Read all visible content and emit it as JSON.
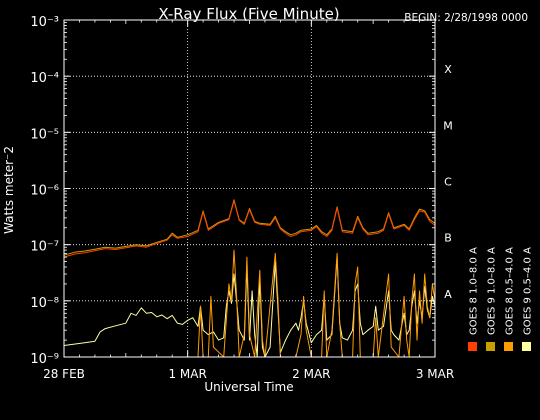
{
  "header": {
    "title": "X-Ray Flux (Five Minute)",
    "begin": "BEGIN: 2/28/1998 0000"
  },
  "chart_data": {
    "type": "line",
    "title": "X-Ray Flux (Five Minute)",
    "xlabel": "Universal Time",
    "ylabel": "Watts meter⁻2",
    "y_scale": "log",
    "ylim": [
      1e-09,
      0.001
    ],
    "y_ticks": [
      {
        "value": 1e-09,
        "label": "10⁻⁹"
      },
      {
        "value": 1e-08,
        "label": "10⁻⁸"
      },
      {
        "value": 1e-07,
        "label": "10⁻⁷"
      },
      {
        "value": 1e-06,
        "label": "10⁻⁶"
      },
      {
        "value": 1e-05,
        "label": "10⁻⁵"
      },
      {
        "value": 0.0001,
        "label": "10⁻⁴"
      },
      {
        "value": 0.001,
        "label": "10⁻³"
      }
    ],
    "xlim": [
      0,
      72
    ],
    "x_unit": "hours since 28 Feb 1998 00:00 UT",
    "x_ticks": [
      {
        "value": 0,
        "label": "28 FEB"
      },
      {
        "value": 24,
        "label": "1 MAR"
      },
      {
        "value": 48,
        "label": "2 MAR"
      },
      {
        "value": 72,
        "label": "3 MAR"
      }
    ],
    "flare_classes": [
      {
        "label": "A",
        "value": 1e-08
      },
      {
        "label": "B",
        "value": 1e-07
      },
      {
        "label": "C",
        "value": 1e-06
      },
      {
        "label": "M",
        "value": 1e-05
      },
      {
        "label": "X",
        "value": 0.0001
      }
    ],
    "grid": "dotted",
    "legend_placement": "right",
    "series": [
      {
        "name": "GOES 8 1.0–8.0 A",
        "color": "#ff4000",
        "band": "long",
        "points": [
          [
            0,
            6e-08
          ],
          [
            2,
            6.8e-08
          ],
          [
            4,
            7.2e-08
          ],
          [
            6,
            7.8e-08
          ],
          [
            8,
            8.5e-08
          ],
          [
            10,
            8.2e-08
          ],
          [
            12,
            8.8e-08
          ],
          [
            14,
            9.5e-08
          ],
          [
            16,
            9e-08
          ],
          [
            18,
            1.05e-07
          ],
          [
            20,
            1.2e-07
          ],
          [
            21,
            1.5e-07
          ],
          [
            22,
            1.3e-07
          ],
          [
            24,
            1.4e-07
          ],
          [
            26,
            1.7e-07
          ],
          [
            27,
            3.8e-07
          ],
          [
            28,
            1.8e-07
          ],
          [
            30,
            2.4e-07
          ],
          [
            32,
            2.8e-07
          ],
          [
            33,
            6e-07
          ],
          [
            34,
            2.7e-07
          ],
          [
            35,
            2.3e-07
          ],
          [
            36,
            4.2e-07
          ],
          [
            37,
            2.5e-07
          ],
          [
            38,
            2.3e-07
          ],
          [
            40,
            2.2e-07
          ],
          [
            41,
            3e-07
          ],
          [
            42,
            1.9e-07
          ],
          [
            43,
            1.6e-07
          ],
          [
            44,
            1.4e-07
          ],
          [
            45,
            1.5e-07
          ],
          [
            46,
            1.7e-07
          ],
          [
            48,
            1.8e-07
          ],
          [
            49,
            2.1e-07
          ],
          [
            50,
            1.6e-07
          ],
          [
            51,
            1.4e-07
          ],
          [
            52,
            1.8e-07
          ],
          [
            53,
            4.5e-07
          ],
          [
            54,
            1.7e-07
          ],
          [
            56,
            1.6e-07
          ],
          [
            57,
            3e-07
          ],
          [
            58,
            1.9e-07
          ],
          [
            59,
            1.5e-07
          ],
          [
            61,
            1.6e-07
          ],
          [
            62,
            1.8e-07
          ],
          [
            63,
            3.5e-07
          ],
          [
            64,
            1.9e-07
          ],
          [
            66,
            2.2e-07
          ],
          [
            67,
            1.8e-07
          ],
          [
            68,
            2.8e-07
          ],
          [
            69,
            4e-07
          ],
          [
            70,
            3.8e-07
          ],
          [
            71,
            2.6e-07
          ],
          [
            72,
            2.2e-07
          ]
        ]
      },
      {
        "name": "GOES 8 0.5–4.0 A",
        "color": "#ff9c00",
        "band": "short",
        "points": [
          [
            0,
            1e-09
          ],
          [
            26,
            1e-09
          ],
          [
            26.5,
            8e-09
          ],
          [
            27,
            1e-09
          ],
          [
            28,
            1e-09
          ],
          [
            28.5,
            1.2e-08
          ],
          [
            29,
            1.5e-09
          ],
          [
            31,
            1e-09
          ],
          [
            32,
            2e-08
          ],
          [
            32.5,
            1e-08
          ],
          [
            33,
            8e-08
          ],
          [
            33.5,
            1.2e-08
          ],
          [
            34,
            1e-09
          ],
          [
            35,
            2.5e-09
          ],
          [
            35.5,
            6e-08
          ],
          [
            36,
            2.5e-09
          ],
          [
            37,
            1e-09
          ],
          [
            38,
            3.5e-08
          ],
          [
            38.5,
            2e-09
          ],
          [
            39,
            1e-09
          ],
          [
            41,
            7e-08
          ],
          [
            41.5,
            1.2e-08
          ],
          [
            42,
            1e-09
          ],
          [
            45,
            1e-09
          ],
          [
            46,
            2.5e-09
          ],
          [
            46.5,
            1.2e-08
          ],
          [
            47,
            3e-09
          ],
          [
            48,
            1e-09
          ],
          [
            50,
            1e-09
          ],
          [
            50.5,
            1.5e-08
          ],
          [
            51,
            1e-09
          ],
          [
            52,
            3e-09
          ],
          [
            53,
            7e-08
          ],
          [
            53.5,
            4e-09
          ],
          [
            54,
            1e-09
          ],
          [
            56,
            1e-09
          ],
          [
            56.5,
            2e-08
          ],
          [
            57,
            4e-08
          ],
          [
            57.5,
            1e-09
          ],
          [
            60,
            1e-09
          ],
          [
            60.5,
            5e-09
          ],
          [
            61,
            1e-09
          ],
          [
            63,
            3e-08
          ],
          [
            63.5,
            1.5e-09
          ],
          [
            65,
            1e-09
          ],
          [
            66,
            1.2e-08
          ],
          [
            66.5,
            2e-09
          ],
          [
            67,
            1e-09
          ],
          [
            67.5,
            1e-08
          ],
          [
            68,
            3e-08
          ],
          [
            68.5,
            2e-09
          ],
          [
            69,
            1.5e-08
          ],
          [
            69.5,
            4e-09
          ],
          [
            70,
            3e-08
          ],
          [
            70.5,
            8e-09
          ],
          [
            71,
            5e-09
          ],
          [
            71.5,
            2e-08
          ],
          [
            72,
            1e-08
          ]
        ]
      },
      {
        "name": "GOES 9 1.0–8.0 A",
        "color": "#c8a000",
        "band": "long",
        "points": [
          [
            0,
            6.5e-08
          ],
          [
            2,
            7.3e-08
          ],
          [
            4,
            7.7e-08
          ],
          [
            6,
            8.3e-08
          ],
          [
            8,
            9e-08
          ],
          [
            10,
            8.7e-08
          ],
          [
            12,
            9.3e-08
          ],
          [
            14,
            1e-07
          ],
          [
            16,
            9.5e-08
          ],
          [
            18,
            1.1e-07
          ],
          [
            20,
            1.25e-07
          ],
          [
            21,
            1.6e-07
          ],
          [
            22,
            1.35e-07
          ],
          [
            24,
            1.5e-07
          ],
          [
            26,
            1.8e-07
          ],
          [
            27,
            4e-07
          ],
          [
            28,
            1.9e-07
          ],
          [
            30,
            2.5e-07
          ],
          [
            32,
            2.9e-07
          ],
          [
            33,
            6.3e-07
          ],
          [
            34,
            2.8e-07
          ],
          [
            35,
            2.4e-07
          ],
          [
            36,
            4.4e-07
          ],
          [
            37,
            2.6e-07
          ],
          [
            38,
            2.4e-07
          ],
          [
            40,
            2.3e-07
          ],
          [
            41,
            3.2e-07
          ],
          [
            42,
            2e-07
          ],
          [
            43,
            1.7e-07
          ],
          [
            44,
            1.5e-07
          ],
          [
            45,
            1.6e-07
          ],
          [
            46,
            1.8e-07
          ],
          [
            48,
            1.9e-07
          ],
          [
            49,
            2.2e-07
          ],
          [
            50,
            1.7e-07
          ],
          [
            51,
            1.5e-07
          ],
          [
            52,
            1.9e-07
          ],
          [
            53,
            4.7e-07
          ],
          [
            54,
            1.8e-07
          ],
          [
            56,
            1.7e-07
          ],
          [
            57,
            3.2e-07
          ],
          [
            58,
            2e-07
          ],
          [
            59,
            1.6e-07
          ],
          [
            61,
            1.7e-07
          ],
          [
            62,
            1.9e-07
          ],
          [
            63,
            3.7e-07
          ],
          [
            64,
            2e-07
          ],
          [
            66,
            2.3e-07
          ],
          [
            67,
            1.9e-07
          ],
          [
            68,
            3e-07
          ],
          [
            69,
            4.3e-07
          ],
          [
            70,
            4e-07
          ],
          [
            71,
            2.8e-07
          ],
          [
            72,
            2.4e-07
          ]
        ]
      },
      {
        "name": "GOES 9 0.5–4.0 A",
        "color": "#ffffa0",
        "band": "short",
        "points": [
          [
            0,
            1.6e-09
          ],
          [
            2,
            1.7e-09
          ],
          [
            4,
            1.8e-09
          ],
          [
            6,
            1.9e-09
          ],
          [
            7,
            2.8e-09
          ],
          [
            8,
            3.2e-09
          ],
          [
            10,
            3.6e-09
          ],
          [
            12,
            4e-09
          ],
          [
            13,
            6e-09
          ],
          [
            14,
            5.5e-09
          ],
          [
            15,
            7.5e-09
          ],
          [
            16,
            6e-09
          ],
          [
            17,
            6.2e-09
          ],
          [
            18,
            5.2e-09
          ],
          [
            19,
            5.6e-09
          ],
          [
            20,
            4.8e-09
          ],
          [
            21,
            5.5e-09
          ],
          [
            22,
            4e-09
          ],
          [
            23,
            3.8e-09
          ],
          [
            24,
            4.5e-09
          ],
          [
            25,
            5e-09
          ],
          [
            26,
            3.5e-09
          ],
          [
            26.5,
            8e-09
          ],
          [
            27,
            3e-09
          ],
          [
            28,
            2.5e-09
          ],
          [
            29,
            2.8e-09
          ],
          [
            30,
            2e-09
          ],
          [
            31,
            2.2e-09
          ],
          [
            31.5,
            8e-09
          ],
          [
            32,
            1.5e-08
          ],
          [
            32.5,
            9e-09
          ],
          [
            33,
            3e-08
          ],
          [
            33.5,
            1e-08
          ],
          [
            34,
            3e-09
          ],
          [
            35,
            2e-09
          ],
          [
            35.5,
            4e-08
          ],
          [
            36,
            2e-09
          ],
          [
            36.5,
            1.5e-08
          ],
          [
            37,
            2.5e-09
          ],
          [
            37.5,
            1e-09
          ],
          [
            38,
            2.5e-08
          ],
          [
            38.5,
            1.5e-09
          ],
          [
            39,
            1e-09
          ],
          [
            40,
            1.5e-09
          ],
          [
            41,
            5e-08
          ],
          [
            41.5,
            8e-09
          ],
          [
            42,
            1.2e-09
          ],
          [
            43,
            2e-09
          ],
          [
            44,
            3e-09
          ],
          [
            45,
            4e-09
          ],
          [
            45.5,
            3e-09
          ],
          [
            46,
            5e-09
          ],
          [
            46.5,
            1e-08
          ],
          [
            47,
            4e-09
          ],
          [
            48,
            1.8e-09
          ],
          [
            49,
            2.5e-09
          ],
          [
            50,
            3e-09
          ],
          [
            50.5,
            1.2e-08
          ],
          [
            51,
            2e-09
          ],
          [
            52,
            2.5e-09
          ],
          [
            53,
            6e-08
          ],
          [
            53.5,
            4e-09
          ],
          [
            54,
            2.2e-09
          ],
          [
            55,
            2e-09
          ],
          [
            56,
            3e-09
          ],
          [
            56.5,
            1.5e-08
          ],
          [
            57,
            2e-08
          ],
          [
            57.5,
            4e-09
          ],
          [
            58,
            2.5e-09
          ],
          [
            59,
            3e-09
          ],
          [
            60,
            3.5e-09
          ],
          [
            60.5,
            8e-09
          ],
          [
            61,
            3e-09
          ],
          [
            62,
            3.5e-09
          ],
          [
            63,
            1.5e-08
          ],
          [
            63.5,
            3e-09
          ],
          [
            64,
            2.5e-09
          ],
          [
            65,
            2e-09
          ],
          [
            66,
            6e-09
          ],
          [
            66.5,
            2.5e-09
          ],
          [
            67,
            3e-09
          ],
          [
            67.5,
            8e-09
          ],
          [
            68,
            1.5e-08
          ],
          [
            68.5,
            4e-09
          ],
          [
            69,
            1e-08
          ],
          [
            69.5,
            5e-09
          ],
          [
            70,
            1.8e-08
          ],
          [
            70.5,
            7e-09
          ],
          [
            71,
            5e-09
          ],
          [
            71.5,
            1.2e-08
          ],
          [
            72,
            8e-09
          ]
        ]
      }
    ]
  }
}
